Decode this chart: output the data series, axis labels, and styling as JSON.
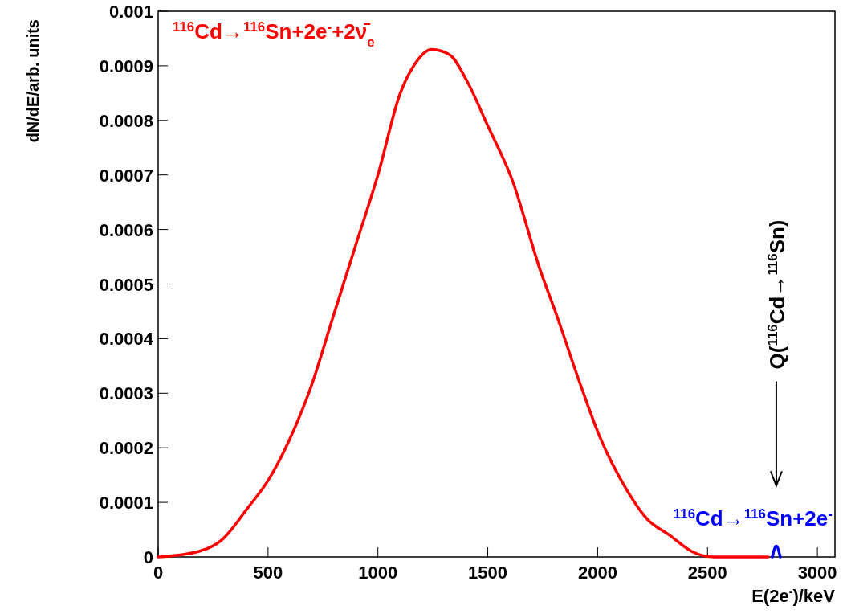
{
  "chart_data": {
    "type": "line",
    "xlabel": "E(2e$^{-}$)/keV",
    "ylabel": "dN/dE/arb. units",
    "xlim": [
      0,
      3080
    ],
    "ylim": [
      0,
      0.001
    ],
    "xticks": [
      0,
      500,
      1000,
      1500,
      2000,
      2500,
      3000
    ],
    "yticks": [
      0,
      0.0001,
      0.0002,
      0.0003,
      0.0004,
      0.0005,
      0.0006,
      0.0007,
      0.0008,
      0.0009,
      0.001
    ],
    "grid": false,
    "line_style": "solid",
    "marker": "none",
    "series": [
      {
        "name": "$^{116}$Cd→$^{116}$Sn+2e$^{-}$+2ν̄$_{e}$",
        "color": "#ff0000",
        "x": [
          0,
          184,
          286,
          408,
          500,
          592,
          694,
          796,
          898,
          1000,
          1102,
          1163,
          1245,
          1327,
          1408,
          1500,
          1612,
          1735,
          1816,
          1918,
          2010,
          2122,
          2224,
          2327,
          2429,
          2531,
          2776
        ],
        "values": [
          0,
          1e-05,
          3e-05,
          9e-05,
          0.00014,
          0.00021,
          0.00031,
          0.00044,
          0.00057,
          0.0007,
          0.00085,
          0.0009,
          0.00093,
          0.00092,
          0.00087,
          0.00079,
          0.00069,
          0.00053,
          0.00044,
          0.00032,
          0.00022,
          0.00013,
          7e-05,
          4e-05,
          1e-05,
          0,
          0
        ]
      },
      {
        "name": "$^{116}$Cd→$^{116}$Sn+2e$^{-}$",
        "color": "#0000ff",
        "x": [
          2795,
          2813,
          2831
        ],
        "values": [
          0,
          2e-05,
          0
        ]
      }
    ],
    "annotations": [
      "Q($^{116}$Cd→$^{116}$Sn)"
    ]
  }
}
